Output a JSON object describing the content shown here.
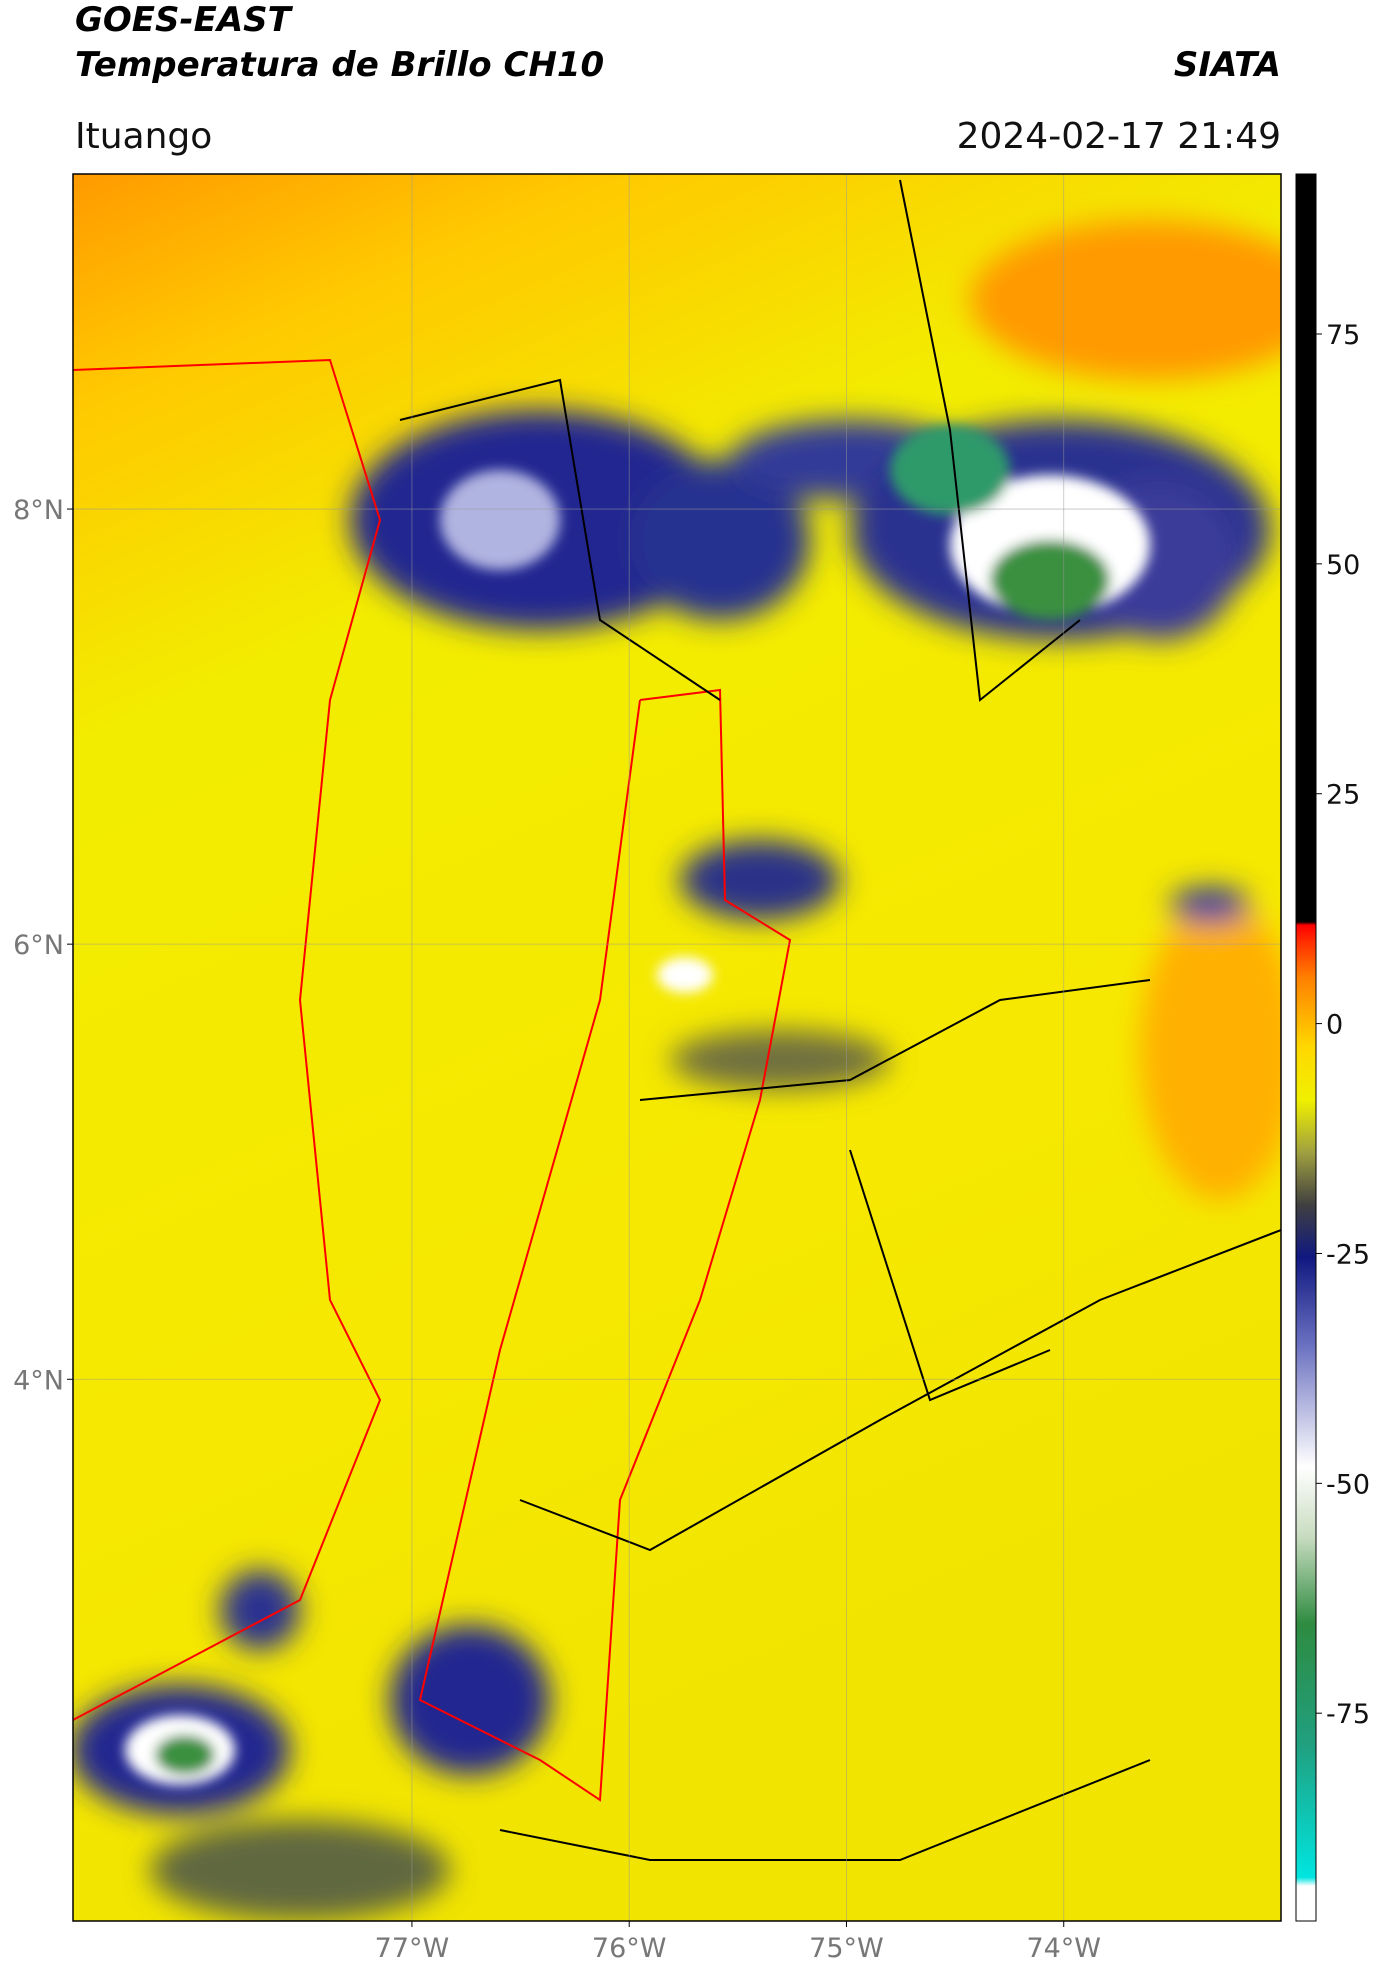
{
  "header": {
    "title": "GOES-EAST",
    "subtitle": "Temperatura de Brillo CH10",
    "source": "SIATA",
    "location": "Ituango",
    "datetime": "2024-02-17 21:49"
  },
  "map": {
    "lat_range": [
      1.51,
      9.54
    ],
    "lon_range": [
      -78.56,
      -73.0
    ],
    "lat_ticks": [
      {
        "value": 8,
        "label": "8°N"
      },
      {
        "value": 6,
        "label": "6°N"
      },
      {
        "value": 4,
        "label": "4°N"
      }
    ],
    "lon_ticks": [
      {
        "value": -77,
        "label": "77°W"
      },
      {
        "value": -76,
        "label": "76°W"
      },
      {
        "value": -75,
        "label": "75°W"
      },
      {
        "value": -74,
        "label": "74°W"
      }
    ],
    "grid": true
  },
  "colorbar": {
    "lim": [
      -97.6,
      92.4
    ],
    "ticks": [
      75,
      50,
      25,
      0,
      -25,
      -50,
      -75
    ]
  }
}
